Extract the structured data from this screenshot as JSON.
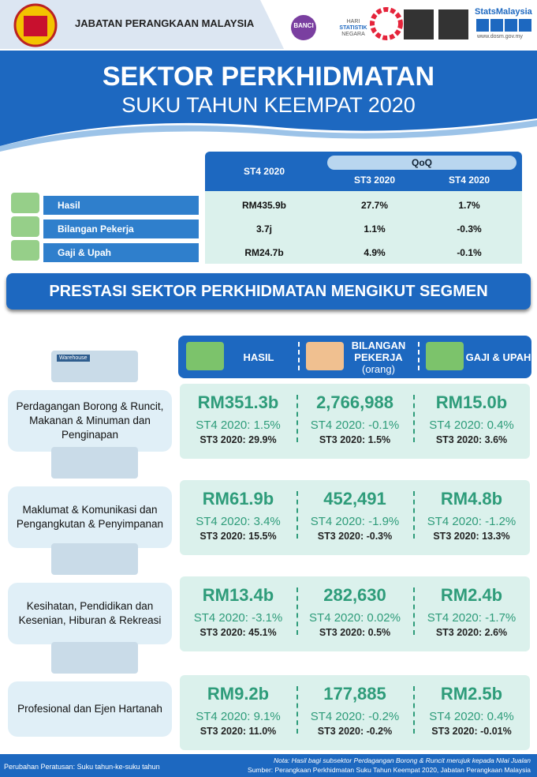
{
  "header": {
    "agency": "JABATAN PERANGKAAN MALAYSIA",
    "banci": "BANCI",
    "hari": "HARI",
    "statistik": "STATISTIK",
    "negara": "NEGARA",
    "brand": "StatsMalaysia",
    "website": "www.dosm.gov.my"
  },
  "title": "SEKTOR PERKHIDMATAN",
  "subtitle": "SUKU TAHUN KEEMPAT 2020",
  "summary": {
    "current": "ST4 2020",
    "group": "QoQ",
    "compare": [
      "ST3 2020",
      "ST4 2020"
    ],
    "rows": [
      {
        "label": "Hasil",
        "values": [
          "RM435.9b",
          "27.7%",
          "1.7%"
        ]
      },
      {
        "label": "Bilangan Pekerja",
        "values": [
          "3.7j",
          "1.1%",
          "-0.3%"
        ]
      },
      {
        "label": "Gaji & Upah",
        "values": [
          "RM24.7b",
          "4.9%",
          "-0.1%"
        ]
      }
    ]
  },
  "segment_title": "PRESTASI SEKTOR PERKHIDMATAN MENGIKUT SEGMEN",
  "columns": [
    {
      "text": "HASIL"
    },
    {
      "text": "BILANGAN PEKERJA",
      "unit": "(orang)"
    },
    {
      "text": "GAJI & UPAH"
    }
  ],
  "segments": [
    {
      "name": "Perdagangan Borong & Runcit, Makanan & Minuman dan Penginapan",
      "icon": "Warehouse",
      "metrics": [
        {
          "value": "RM351.3b",
          "st4": "ST4 2020: 1.5%",
          "st3": "ST3 2020: 29.9%"
        },
        {
          "value": "2,766,988",
          "st4": "ST4 2020: -0.1%",
          "st3": "ST3 2020: 1.5%"
        },
        {
          "value": "RM15.0b",
          "st4": "ST4 2020: 0.4%",
          "st3": "ST3 2020: 3.6%"
        }
      ]
    },
    {
      "name": "Maklumat & Komunikasi dan Pengangkutan & Penyimpanan",
      "metrics": [
        {
          "value": "RM61.9b",
          "st4": "ST4 2020: 3.4%",
          "st3": "ST3 2020: 15.5%"
        },
        {
          "value": "452,491",
          "st4": "ST4 2020: -1.9%",
          "st3": "ST3 2020: -0.3%"
        },
        {
          "value": "RM4.8b",
          "st4": "ST4 2020: -1.2%",
          "st3": "ST3 2020: 13.3%"
        }
      ]
    },
    {
      "name": "Kesihatan, Pendidikan dan Kesenian, Hiburan & Rekreasi",
      "metrics": [
        {
          "value": "RM13.4b",
          "st4": "ST4 2020: -3.1%",
          "st3": "ST3 2020: 45.1%"
        },
        {
          "value": "282,630",
          "st4": "ST4 2020: 0.02%",
          "st3": "ST3 2020: 0.5%"
        },
        {
          "value": "RM2.4b",
          "st4": "ST4 2020: -1.7%",
          "st3": "ST3 2020: 2.6%"
        }
      ]
    },
    {
      "name": "Profesional dan Ejen Hartanah",
      "metrics": [
        {
          "value": "RM9.2b",
          "st4": "ST4 2020: 9.1%",
          "st3": "ST3 2020: 11.0%"
        },
        {
          "value": "177,885",
          "st4": "ST4 2020: -0.2%",
          "st3": "ST3 2020: -0.2%"
        },
        {
          "value": "RM2.5b",
          "st4": "ST4 2020: 0.4%",
          "st3": "ST3 2020: -0.01%"
        }
      ]
    }
  ],
  "footer": {
    "left": "Perubahan Peratusan: Suku tahun-ke-suku tahun",
    "note": "Nota: Hasil bagi subsektor Perdagangan Borong & Runcit merujuk kepada Nilai Jualan",
    "source": "Sumber: Perangkaan Perkhidmatan Suku Tahun Keempat 2020, Jabatan Perangkaan Malaysia"
  }
}
